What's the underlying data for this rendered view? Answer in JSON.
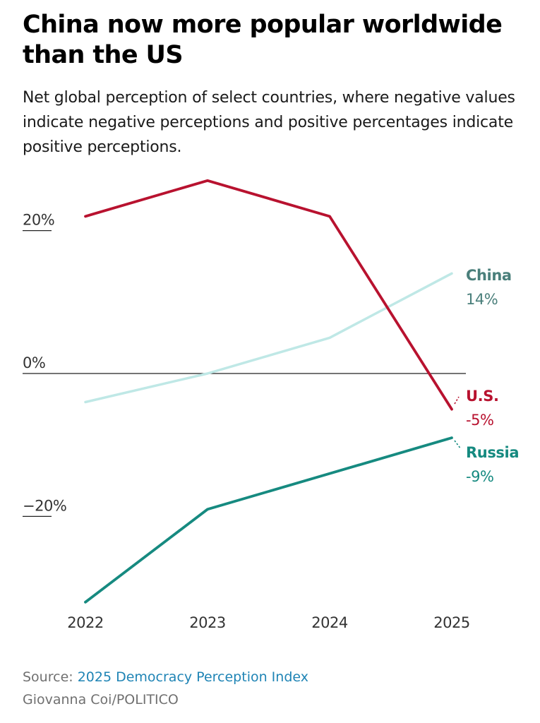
{
  "chart_data": {
    "type": "line",
    "title": "China now more popular worldwide than the US",
    "subtitle": "Net global perception of select countries, where negative values indicate negative perceptions and positive percentages indicate positive perceptions.",
    "x": [
      "2022",
      "2023",
      "2024",
      "2025"
    ],
    "ylim": [
      -32,
      27
    ],
    "y_ticks": [
      {
        "value": 20,
        "label": "20%"
      },
      {
        "value": 0,
        "label": "0%"
      },
      {
        "value": -20,
        "label": "−20%"
      }
    ],
    "zero_line": true,
    "grid": false,
    "legend": "direct-labels-right",
    "series": [
      {
        "name": "U.S.",
        "values": [
          22,
          27,
          22,
          -5
        ],
        "end_label": "-5%",
        "color": "#b8122f"
      },
      {
        "name": "China",
        "values": [
          -4,
          0,
          5,
          14
        ],
        "end_label": "14%",
        "color": "#bfe8e6",
        "label_color": "#4a7f7b"
      },
      {
        "name": "Russia",
        "values": [
          -32,
          -19,
          -14,
          -9
        ],
        "end_label": "-9%",
        "color": "#168a80"
      }
    ]
  },
  "source": {
    "prefix": "Source: ",
    "name": "2025 Democracy Perception Index"
  },
  "credit": "Giovanna Coi/POLITICO"
}
